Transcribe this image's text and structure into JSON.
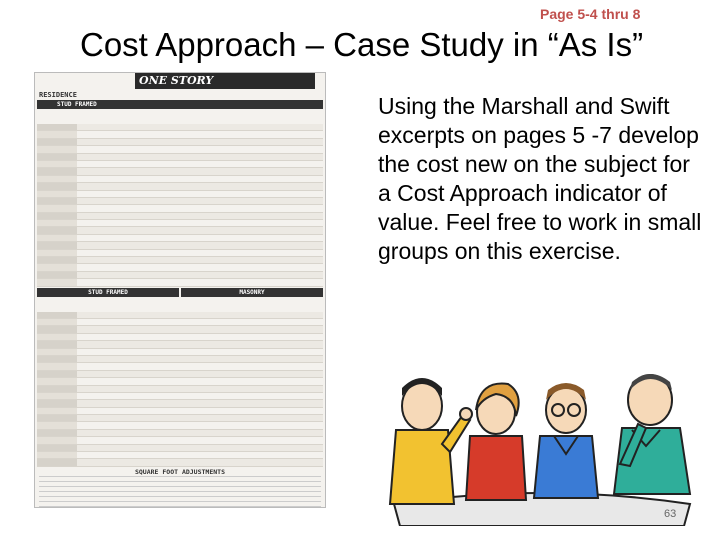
{
  "header": {
    "page_ref": "Page 5-4 thru 8",
    "title": "Cost Approach – Case Study in “As Is”"
  },
  "content": {
    "body": "Using the Marshall and Swift excerpts on pages 5 -7 develop the cost new on the subject for a Cost Approach indicator of value. Feel free to work in small groups on this exercise."
  },
  "cost_sheet": {
    "banner": "ONE STORY",
    "section": "RESIDENCE",
    "bar1": "STUD FRAMED",
    "bar2_left": "STUD FRAMED",
    "bar2_right": "MASONRY",
    "adjustments_title": "SQUARE FOOT ADJUSTMENTS"
  },
  "clipart": {
    "icon": "people-meeting-icon"
  },
  "footer": {
    "page_number": "63"
  }
}
